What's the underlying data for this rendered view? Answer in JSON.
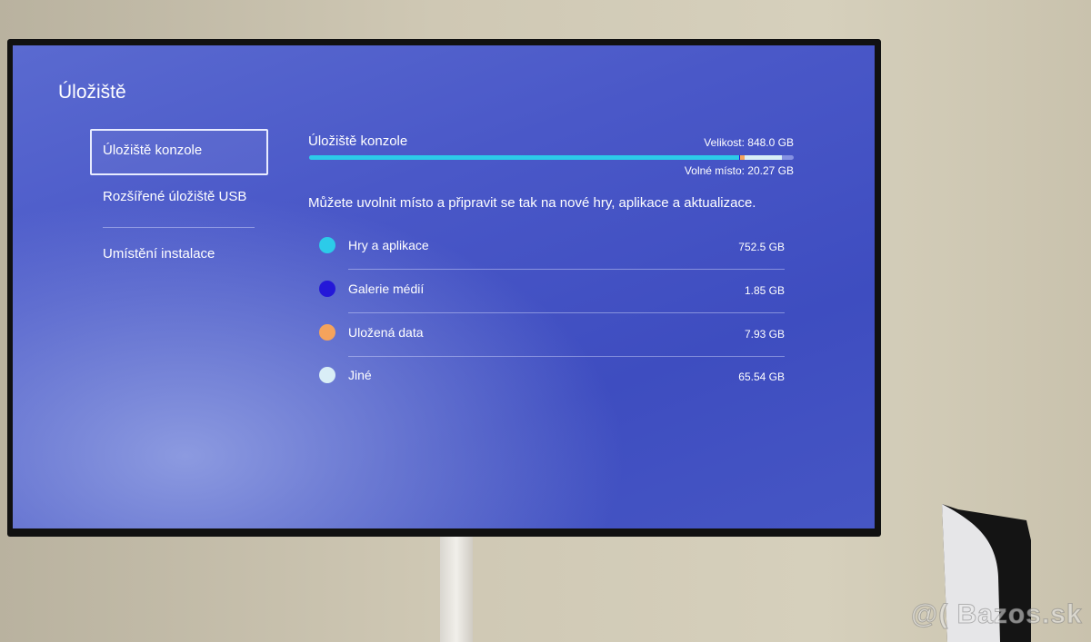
{
  "page": {
    "title": "Úložiště"
  },
  "sidebar": {
    "items": [
      {
        "label": "Úložiště konzole",
        "selected": true
      },
      {
        "label": "Rozšířené úložiště USB"
      },
      {
        "label": "Umístění instalace"
      }
    ]
  },
  "main": {
    "header": "Úložiště konzole",
    "size": "Velikost: 848.0 GB",
    "free": "Volné místo: 20.27 GB",
    "description": "Můžete uvolnit místo a připravit se tak na nové hry, aplikace a aktualizace.",
    "usage_gb": {
      "total": 848.0,
      "free": 20.27
    },
    "categories": [
      {
        "label": "Hry a aplikace",
        "value": "752.5 GB",
        "gb": 752.5,
        "color": "#2ccbe9"
      },
      {
        "label": "Galerie médií",
        "value": "1.85 GB",
        "gb": 1.85,
        "color": "#2418d8"
      },
      {
        "label": "Uložená data",
        "value": "7.93 GB",
        "gb": 7.93,
        "color": "#f5a35c"
      },
      {
        "label": "Jiné",
        "value": "65.54 GB",
        "gb": 65.54,
        "color": "#d9eef6"
      }
    ]
  },
  "watermark": "@( Bazos.sk"
}
